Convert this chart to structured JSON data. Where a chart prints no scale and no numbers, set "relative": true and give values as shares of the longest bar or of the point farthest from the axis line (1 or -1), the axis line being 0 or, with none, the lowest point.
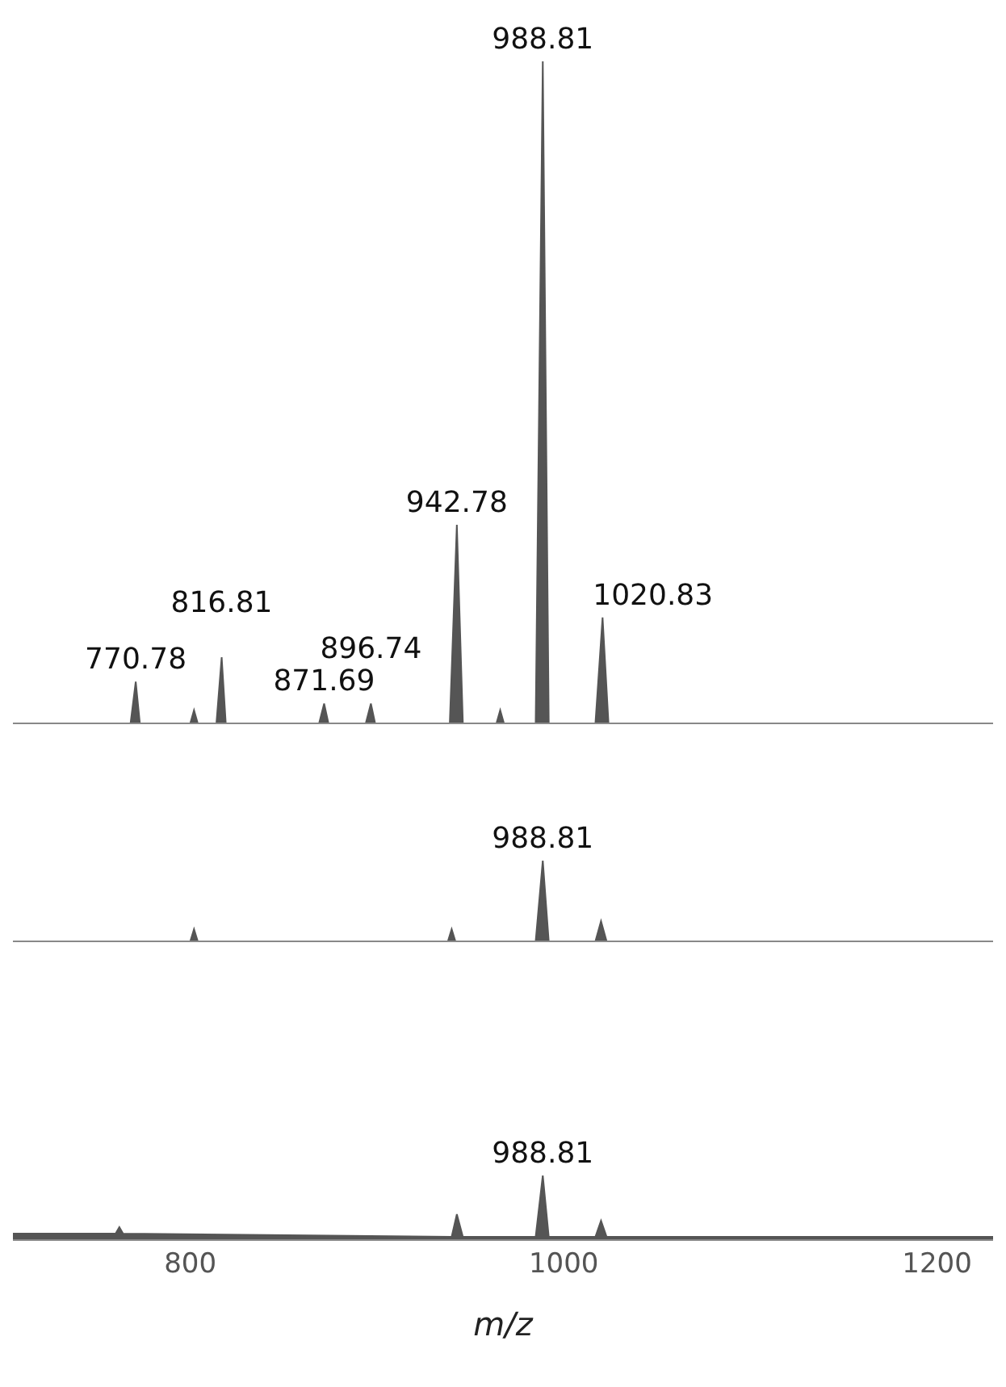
{
  "chart_data": [
    {
      "type": "area",
      "relative": true,
      "xlim": [
        705,
        1230
      ],
      "tick_labels": false,
      "x": [
        705,
        768,
        770.78,
        773,
        800,
        802,
        804,
        814,
        816.81,
        819,
        869,
        871.69,
        874,
        894,
        896.74,
        899,
        939,
        942.78,
        946,
        964,
        966,
        968,
        985,
        988.81,
        992,
        1017,
        1020.83,
        1024,
        1230
      ],
      "series": [
        {
          "color": "#555555",
          "values": [
            0,
            0,
            0.063,
            0,
            0,
            0.02,
            0,
            0,
            0.1,
            0,
            0,
            0.03,
            0,
            0,
            0.03,
            0,
            0,
            0.3,
            0,
            0,
            0.02,
            0,
            0,
            1,
            0,
            0,
            0.16,
            0,
            0
          ]
        }
      ],
      "annotations": [
        {
          "text": "770.78",
          "x": 770.78,
          "y": 0.063
        },
        {
          "text": "816.81",
          "x": 816.81,
          "y": 0.1
        },
        {
          "text": "871.69",
          "x": 871.69,
          "y": 0.03
        },
        {
          "text": "896.74",
          "x": 896.74,
          "y": 0.03
        },
        {
          "text": "942.78",
          "x": 942.78,
          "y": 0.3
        },
        {
          "text": "988.81",
          "x": 988.81,
          "y": 1
        },
        {
          "text": "1020.83",
          "x": 1020.83,
          "y": 0.16
        }
      ]
    },
    {
      "type": "area",
      "relative": true,
      "xlim": [
        705,
        1230
      ],
      "tick_labels": false,
      "x": [
        705,
        800,
        802,
        804,
        938,
        940,
        942,
        985,
        988.81,
        992,
        1017,
        1020,
        1023,
        1230
      ],
      "series": [
        {
          "color": "#555555",
          "values": [
            0,
            0,
            0.15,
            0,
            0,
            0.15,
            0,
            0,
            1,
            0,
            0,
            0.25,
            0,
            0
          ]
        }
      ],
      "annotations": [
        {
          "text": "988.81",
          "x": 988.81,
          "y": 1
        }
      ]
    },
    {
      "type": "area",
      "relative": true,
      "xlim": [
        705,
        1230
      ],
      "xticks": [
        800,
        1000,
        1200
      ],
      "tick_labels": "x",
      "xlabel": "m/z",
      "x": [
        705,
        760,
        762,
        764,
        940,
        942.78,
        946,
        985,
        988.81,
        992,
        1017,
        1020,
        1023,
        1230
      ],
      "series": [
        {
          "color": "#555555",
          "values": [
            0.1,
            0.1,
            0.2,
            0.1,
            0.05,
            0.4,
            0.05,
            0.05,
            1,
            0.05,
            0.05,
            0.3,
            0.05,
            0.05
          ]
        }
      ],
      "annotations": [
        {
          "text": "988.81",
          "x": 988.81,
          "y": 1
        }
      ]
    }
  ]
}
